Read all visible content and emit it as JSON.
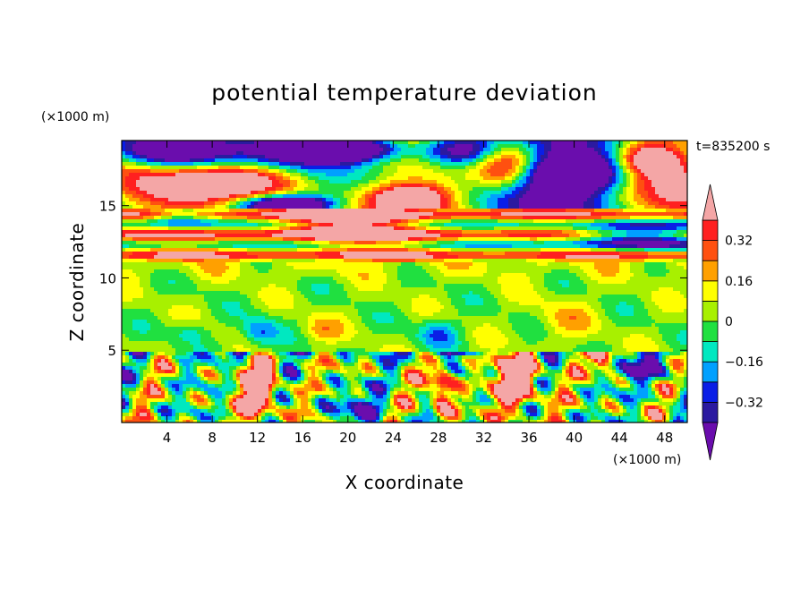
{
  "chart_data": {
    "type": "heatmap",
    "title": "potential temperature deviation",
    "xlabel": "X coordinate",
    "ylabel": "Z coordinate",
    "x_units": "(×1000 m)",
    "y_units": "(×1000 m)",
    "time_label": "t=835200 s",
    "xlim": [
      0,
      50
    ],
    "ylim": [
      0,
      19.5
    ],
    "x_ticks": [
      4,
      8,
      12,
      16,
      20,
      24,
      28,
      32,
      36,
      40,
      44,
      48
    ],
    "x_tick_labels": [
      "4",
      "8",
      "12",
      "16",
      "20",
      "24",
      "28",
      "32",
      "36",
      "40",
      "44",
      "48"
    ],
    "y_ticks": [
      5,
      10,
      15
    ],
    "y_tick_labels": [
      "5",
      "10",
      "15"
    ],
    "colorbar": {
      "levels": [
        -0.4,
        -0.32,
        -0.24,
        -0.16,
        -0.08,
        0,
        0.08,
        0.16,
        0.24,
        0.32,
        0.4
      ],
      "tick_values": [
        -0.32,
        -0.16,
        0,
        0.16,
        0.32
      ],
      "tick_labels": [
        "−0.32",
        "−0.16",
        "0",
        "0.16",
        "0.32"
      ],
      "colors": [
        "#6a0dad",
        "#2b1aa0",
        "#0a1ee6",
        "#00a0ff",
        "#00e8c0",
        "#20e040",
        "#a8f000",
        "#ffff00",
        "#ffa000",
        "#ff5010",
        "#ff2020",
        "#f4a6a6"
      ],
      "extend": "both"
    }
  }
}
